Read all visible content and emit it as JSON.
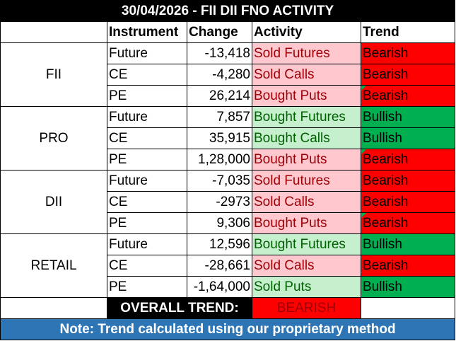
{
  "title": "30/04/2026 - FII DII FNO ACTIVITY",
  "headers": {
    "instrument": "Instrument",
    "change": "Change",
    "activity": "Activity",
    "trend": "Trend"
  },
  "groups": [
    {
      "name": "FII",
      "rows": [
        {
          "instrument": "Future",
          "change": "-13,418",
          "activity": "Sold Futures",
          "trend": "Bearish"
        },
        {
          "instrument": "CE",
          "change": "-4,280",
          "activity": "Sold Calls",
          "trend": "Bearish"
        },
        {
          "instrument": "PE",
          "change": "26,214",
          "activity": "Bought Puts",
          "trend": "Bearish"
        }
      ]
    },
    {
      "name": "PRO",
      "rows": [
        {
          "instrument": "Future",
          "change": "7,857",
          "activity": "Bought Futures",
          "trend": "Bullish"
        },
        {
          "instrument": "CE",
          "change": "35,915",
          "activity": "Bought Calls",
          "trend": "Bullish"
        },
        {
          "instrument": "PE",
          "change": "1,28,000",
          "activity": "Bought Puts",
          "trend": "Bearish"
        }
      ]
    },
    {
      "name": "DII",
      "rows": [
        {
          "instrument": "Future",
          "change": "-7,035",
          "activity": "Sold Futures",
          "trend": "Bearish"
        },
        {
          "instrument": "CE",
          "change": "-2973",
          "activity": "Sold Calls",
          "trend": "Bearish"
        },
        {
          "instrument": "PE",
          "change": "9,306",
          "activity": "Bought Puts",
          "trend": "Bearish"
        }
      ]
    },
    {
      "name": "RETAIL",
      "rows": [
        {
          "instrument": "Future",
          "change": "12,596",
          "activity": "Bought Futures",
          "trend": "Bullish"
        },
        {
          "instrument": "CE",
          "change": "-28,661",
          "activity": "Sold Calls",
          "trend": "Bearish"
        },
        {
          "instrument": "PE",
          "change": "-1,64,000",
          "activity": "Sold Puts",
          "trend": "Bullish"
        }
      ]
    }
  ],
  "overall": {
    "label": "OVERALL TREND:",
    "value": "BEARISH"
  },
  "note": "Note: Trend calculated using our proprietary method",
  "colors": {
    "title_bg": "#000000",
    "bearish_fill": "#ff0000",
    "bullish_fill": "#00b050",
    "sell_fill": "#ffc7ce",
    "sell_text": "#9c0006",
    "buy_fill": "#c6efce",
    "buy_text": "#006100",
    "note_bg": "#2e75b6"
  }
}
